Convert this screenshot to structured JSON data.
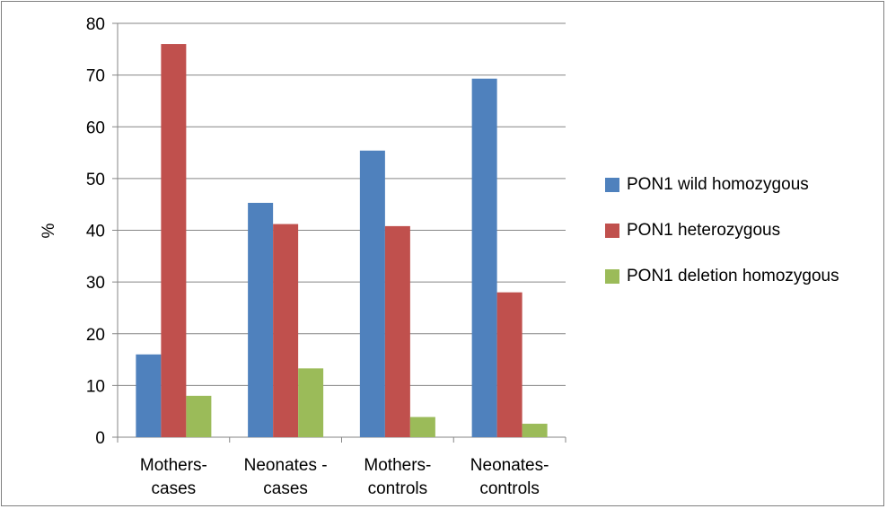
{
  "chart_data": {
    "type": "bar",
    "title": "",
    "xlabel": "",
    "ylabel": "%",
    "ylim": [
      0,
      80
    ],
    "yticks": [
      0,
      10,
      20,
      30,
      40,
      50,
      60,
      70,
      80
    ],
    "grid": true,
    "legend_position": "right",
    "categories": [
      [
        "Mothers-",
        "cases"
      ],
      [
        "Neonates -",
        "cases"
      ],
      [
        "Mothers-",
        "controls"
      ],
      [
        "Neonates-",
        "controls"
      ]
    ],
    "series": [
      {
        "name": "PON1 wild homozygous",
        "color": "#4f81bd",
        "values": [
          16,
          45.3,
          55.4,
          69.3
        ]
      },
      {
        "name": "PON1 heterozygous",
        "color": "#c0504d",
        "values": [
          76,
          41.2,
          40.8,
          28
        ]
      },
      {
        "name": "PON1 deletion homozygous",
        "color": "#9bbb59",
        "values": [
          8,
          13.3,
          3.9,
          2.6
        ]
      }
    ]
  }
}
